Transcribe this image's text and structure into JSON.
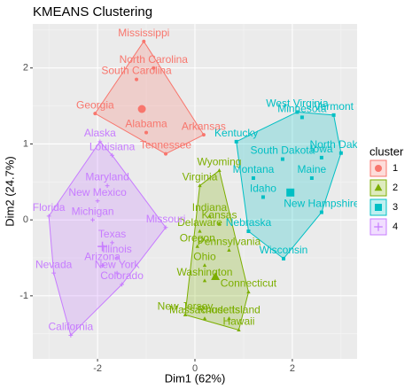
{
  "chart_data": {
    "type": "cluster-scatter",
    "title": "KMEANS Clustering",
    "x_label": "Dim1 (62%)",
    "y_label": "Dim2 (24.7%)",
    "xlim": [
      -3.33,
      3.33
    ],
    "ylim": [
      -1.83,
      2.58
    ],
    "xticks": [
      -2,
      0,
      2
    ],
    "yticks": [
      -1,
      0,
      1,
      2
    ],
    "grid": true,
    "legend_title": "cluster",
    "legend_position": "right",
    "series": [
      {
        "name": "1",
        "color": "#F8766D",
        "shape": "circle",
        "centroid": [
          -1.09,
          1.46
        ],
        "labels": [
          "Mississippi",
          "North Carolina",
          "South Carolina",
          "Georgia",
          "Alabama",
          "Arkansas",
          "Tennessee"
        ],
        "x": [
          -1.05,
          -0.85,
          -1.2,
          -2.05,
          -1.0,
          0.18,
          -0.6
        ],
        "y": [
          2.35,
          2.0,
          1.85,
          1.4,
          1.15,
          1.12,
          0.87
        ]
      },
      {
        "name": "2",
        "color": "#7CAE00",
        "shape": "triangle",
        "centroid": [
          0.42,
          -0.75
        ],
        "labels": [
          "Virginia",
          "Wyoming",
          "Indiana",
          "Kansas",
          "Delaware",
          "Pennsylvania",
          "Oregon",
          "Ohio",
          "Washington",
          "Connecticut",
          "New Jersey",
          "Massachusetts",
          "Rhode Island",
          "Hawaii"
        ],
        "x": [
          0.1,
          0.5,
          0.3,
          0.5,
          0.1,
          0.7,
          0.05,
          0.2,
          0.2,
          1.1,
          -0.2,
          0.2,
          0.7,
          0.9
        ],
        "y": [
          0.45,
          0.65,
          0.05,
          -0.05,
          -0.15,
          -0.4,
          -0.35,
          -0.6,
          -0.8,
          -0.95,
          -1.25,
          -1.3,
          -1.3,
          -1.45
        ]
      },
      {
        "name": "3",
        "color": "#00BFC4",
        "shape": "square",
        "centroid": [
          1.96,
          0.36
        ],
        "labels": [
          "West Virginia",
          "Vermont",
          "Kentucky",
          "South Dakota",
          "North Dakota",
          "Montana",
          "Maine",
          "Idaho",
          "New Hampshire",
          "Iowa",
          "Minnesota",
          "Nebraska",
          "Wisconsin"
        ],
        "x": [
          2.1,
          2.85,
          0.85,
          1.8,
          3.0,
          1.2,
          2.4,
          1.4,
          2.6,
          2.6,
          2.2,
          1.1,
          1.82
        ],
        "y": [
          1.42,
          1.38,
          1.03,
          0.8,
          0.88,
          0.55,
          0.55,
          0.3,
          0.1,
          0.82,
          1.35,
          -0.15,
          -0.51
        ]
      },
      {
        "name": "4",
        "color": "#C77CFF",
        "shape": "plus",
        "centroid": [
          -1.9,
          -0.35
        ],
        "labels": [
          "Alaska",
          "Louisiana",
          "Maryland",
          "Florida",
          "New Mexico",
          "Michigan",
          "Texas",
          "Missouri",
          "Illinois",
          "Arizona",
          "New York",
          "Colorado",
          "Nevada",
          "California"
        ],
        "x": [
          -1.95,
          -1.7,
          -1.8,
          -3.0,
          -2.0,
          -2.1,
          -1.7,
          -0.6,
          -1.6,
          -1.9,
          -1.6,
          -1.5,
          -2.9,
          -2.55
        ],
        "y": [
          1.03,
          0.85,
          0.45,
          0.05,
          0.25,
          0.0,
          -0.3,
          -0.1,
          -0.5,
          -0.6,
          -0.7,
          -0.85,
          -0.7,
          -1.52
        ]
      }
    ]
  }
}
